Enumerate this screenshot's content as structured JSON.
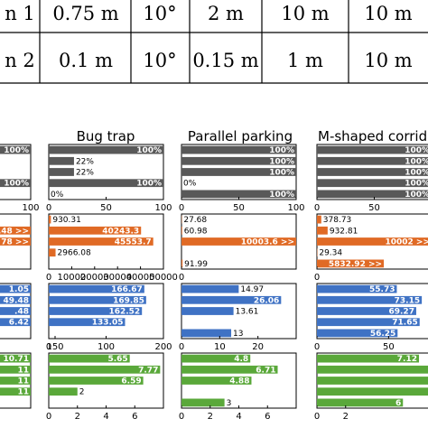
{
  "table": {
    "rows": [
      {
        "cells": [
          "n 1",
          "0.75 m",
          "10°",
          "2 m",
          "10 m",
          "10 m"
        ]
      },
      {
        "cells": [
          "n 2",
          "0.1 m",
          "10°",
          "0.15 m",
          "1 m",
          "10 m"
        ]
      }
    ]
  },
  "colors": {
    "gray": "#595959",
    "orange": "#e06a25",
    "blue": "#3f72c4",
    "green": "#5aa83a"
  },
  "chart_data": [
    {
      "type": "bar",
      "orientation": "horizontal",
      "column": "Bug trap",
      "row": 1,
      "color": "gray",
      "title": "Bug trap",
      "xlim": [
        0,
        100
      ],
      "values": [
        100,
        22,
        22,
        100,
        0
      ],
      "labels": [
        "100%",
        "22%",
        "22%",
        "100%",
        "0%"
      ],
      "ticks": [
        "0",
        "50",
        "100"
      ]
    },
    {
      "type": "bar",
      "orientation": "horizontal",
      "column": "Parallel parking",
      "row": 1,
      "color": "gray",
      "title": "Parallel parking",
      "xlim": [
        0,
        100
      ],
      "values": [
        100,
        100,
        100,
        0,
        100
      ],
      "labels": [
        "100%",
        "100%",
        "100%",
        "0%",
        "100%"
      ],
      "ticks": [
        "0",
        "50",
        "100"
      ]
    },
    {
      "type": "bar",
      "orientation": "horizontal",
      "column": "M-shaped corridor",
      "row": 1,
      "color": "gray",
      "title": "M-shaped corrido",
      "xlim": [
        0,
        100
      ],
      "values": [
        100,
        100,
        100,
        100,
        100
      ],
      "labels": [
        "100%",
        "100%",
        "100%",
        "100%",
        "100%"
      ],
      "ticks": [
        "0",
        "50"
      ]
    },
    {
      "type": "bar",
      "orientation": "horizontal",
      "column": "Bug trap",
      "row": 2,
      "color": "orange",
      "xlim": [
        0,
        50000
      ],
      "values": [
        930.31,
        40243.3,
        45553.7,
        2966.08,
        0
      ],
      "labels": [
        "930.31",
        "40243.3",
        "45553.7",
        "2966.08",
        ""
      ],
      "ticks": [
        "0",
        "10000",
        "20000",
        "30000",
        "40000",
        "50000"
      ]
    },
    {
      "type": "bar",
      "orientation": "horizontal",
      "column": "Parallel parking",
      "row": 2,
      "color": "orange",
      "xlim": [
        0,
        10000
      ],
      "values": [
        27.68,
        60.98,
        10000,
        0,
        91.99
      ],
      "labels": [
        "27.68",
        "60.98",
        "10003.6  >>",
        "",
        "91.99"
      ],
      "ticks": [
        "0"
      ]
    },
    {
      "type": "bar",
      "orientation": "horizontal",
      "column": "M-shaped corridor",
      "row": 2,
      "color": "orange",
      "xlim": [
        0,
        10000
      ],
      "values": [
        378.73,
        932.81,
        10000,
        29.34,
        5832.92
      ],
      "labels": [
        "378.73",
        "932.81",
        "10002  >>",
        "29.34",
        "5832.92  >>"
      ],
      "ticks": [
        "0"
      ]
    },
    {
      "type": "bar",
      "orientation": "horizontal",
      "column": "Bug trap",
      "row": 3,
      "color": "blue",
      "xlim": [
        0,
        200
      ],
      "values": [
        166.67,
        169.85,
        162.52,
        133.05,
        0
      ],
      "labels": [
        "166.67",
        "169.85",
        "162.52",
        "133.05",
        ""
      ],
      "ticks": [
        "0",
        "100",
        "200"
      ]
    },
    {
      "type": "bar",
      "orientation": "horizontal",
      "column": "Parallel parking",
      "row": 3,
      "color": "blue",
      "xlim": [
        0,
        30
      ],
      "values": [
        14.97,
        26.06,
        13.61,
        0,
        13
      ],
      "labels": [
        "14.97",
        "26.06",
        "13.61",
        "",
        "13"
      ],
      "ticks": [
        "0",
        "10",
        "20"
      ]
    },
    {
      "type": "bar",
      "orientation": "horizontal",
      "column": "M-shaped corridor",
      "row": 3,
      "color": "blue",
      "xlim": [
        0,
        80
      ],
      "values": [
        55.73,
        73.15,
        69.27,
        71.65,
        56.25
      ],
      "labels": [
        "55.73",
        "73.15",
        "69.27",
        "71.65",
        "56.25"
      ],
      "ticks": [
        "0",
        "50"
      ]
    },
    {
      "type": "bar",
      "orientation": "horizontal",
      "column": "Bug trap",
      "row": 4,
      "color": "green",
      "xlim": [
        0,
        8
      ],
      "values": [
        5.65,
        7.77,
        6.59,
        2,
        0
      ],
      "labels": [
        "5.65",
        "7.77",
        "6.59",
        "2",
        ""
      ],
      "ticks": [
        "0",
        "2",
        "4",
        "6"
      ]
    },
    {
      "type": "bar",
      "orientation": "horizontal",
      "column": "Parallel parking",
      "row": 4,
      "color": "green",
      "xlim": [
        0,
        8
      ],
      "values": [
        4.8,
        6.71,
        4.88,
        0,
        3
      ],
      "labels": [
        "4.8",
        "6.71",
        "4.88",
        "",
        "3"
      ],
      "ticks": [
        "0",
        "2",
        "4",
        "6"
      ]
    },
    {
      "type": "bar",
      "orientation": "horizontal",
      "column": "M-shaped corridor",
      "row": 4,
      "color": "green",
      "xlim": [
        0,
        8
      ],
      "values": [
        7.12,
        7.92,
        8,
        8,
        6
      ],
      "labels": [
        "7.12",
        "",
        "",
        "",
        "6"
      ],
      "ticks": [
        "0",
        "2"
      ]
    },
    {
      "type": "bar",
      "orientation": "horizontal",
      "column": "left (cropped)",
      "row": 1,
      "color": "gray",
      "xlim": [
        0,
        100
      ],
      "values": [
        100,
        0,
        0,
        100,
        0
      ],
      "labels": [
        "100%",
        "",
        "",
        "100%",
        ""
      ],
      "ticks": [
        "100"
      ]
    },
    {
      "type": "bar",
      "orientation": "horizontal",
      "column": "left (cropped)",
      "row": 2,
      "color": "orange",
      "xlim": [
        0,
        100
      ],
      "values": [
        0,
        100,
        100,
        0,
        0
      ],
      "labels": [
        "",
        ".48  >>",
        "78  >>",
        "",
        ""
      ],
      "ticks": [
        "0"
      ]
    },
    {
      "type": "bar",
      "orientation": "horizontal",
      "column": "left (cropped)",
      "row": 3,
      "color": "blue",
      "xlim": [
        0,
        100
      ],
      "values": [
        100,
        100,
        100,
        100,
        0
      ],
      "labels": [
        "1.05",
        "49.48",
        ".48",
        "6.42",
        ""
      ],
      "ticks": [
        "150"
      ]
    },
    {
      "type": "bar",
      "orientation": "horizontal",
      "column": "left (cropped)",
      "row": 4,
      "color": "green",
      "xlim": [
        0,
        100
      ],
      "values": [
        100,
        100,
        100,
        100,
        0
      ],
      "labels": [
        "10.71",
        "11",
        "11",
        "11",
        ""
      ],
      "ticks": [
        ""
      ]
    }
  ]
}
